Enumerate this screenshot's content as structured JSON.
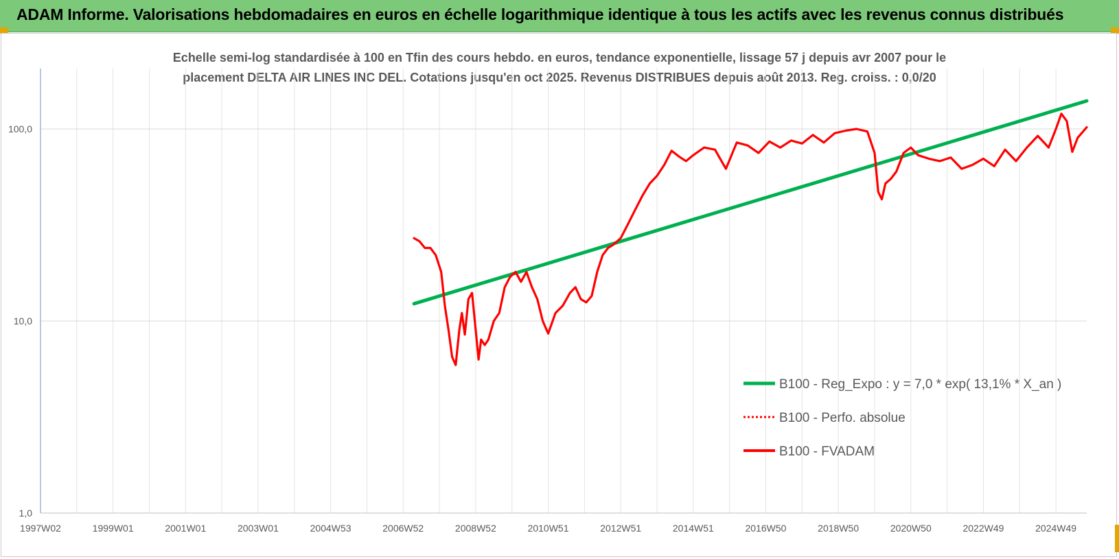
{
  "header": {
    "title": "ADAM Informe. Valorisations hebdomadaires en euros en échelle logarithmique identique à tous les actifs avec les revenus connus distribués"
  },
  "chart_data": {
    "type": "line",
    "title_line1": "Echelle semi-log standardisée à 100 en Tfin des cours hebdo. en euros, tendance exponentielle, lissage 57 j depuis avr 2007 pour le",
    "title_line2": "placement DELTA AIR LINES INC DEL. Cotations jusqu'en oct 2025. Revenus DISTRIBUES depuis août 2013. Reg. croiss. : 0,0/20",
    "y_scale": "log",
    "ylim": [
      1,
      180
    ],
    "xlim": [
      1997.0,
      2025.85
    ],
    "grid": true,
    "legend_position": "bottom-right",
    "y_ticks": [
      {
        "value": 1,
        "label": "1,0"
      },
      {
        "value": 10,
        "label": "10,0"
      },
      {
        "value": 100,
        "label": "100,0"
      }
    ],
    "x_ticks": [
      {
        "value": 1997.0,
        "label": "1997W02"
      },
      {
        "value": 1999.0,
        "label": "1999W01"
      },
      {
        "value": 2001.0,
        "label": "2001W01"
      },
      {
        "value": 2003.0,
        "label": "2003W01"
      },
      {
        "value": 2005.0,
        "label": "2004W53"
      },
      {
        "value": 2007.0,
        "label": "2006W52"
      },
      {
        "value": 2009.0,
        "label": "2008W52"
      },
      {
        "value": 2011.0,
        "label": "2010W51"
      },
      {
        "value": 2013.0,
        "label": "2012W51"
      },
      {
        "value": 2015.0,
        "label": "2014W51"
      },
      {
        "value": 2017.0,
        "label": "2016W50"
      },
      {
        "value": 2019.0,
        "label": "2018W50"
      },
      {
        "value": 2021.0,
        "label": "2020W50"
      },
      {
        "value": 2023.0,
        "label": "2022W49"
      },
      {
        "value": 2025.0,
        "label": "2024W49"
      }
    ],
    "series": [
      {
        "name": "B100 - Reg_Expo : y = 7,0 * exp( 13,1% *  X_an )",
        "color": "#00b050",
        "style": "solid",
        "x": [
          2007.3,
          2025.85
        ],
        "y": [
          12.3,
          140
        ]
      },
      {
        "name": "B100 - Perfo. absolue",
        "color": "#ff0000",
        "style": "dotted",
        "x": [],
        "y": []
      },
      {
        "name": "B100 - FVADAM",
        "color": "#ff0000",
        "style": "solid",
        "x": [
          2007.3,
          2007.45,
          2007.6,
          2007.75,
          2007.9,
          2008.05,
          2008.15,
          2008.25,
          2008.35,
          2008.45,
          2008.55,
          2008.62,
          2008.7,
          2008.8,
          2008.9,
          2009.0,
          2009.08,
          2009.15,
          2009.25,
          2009.35,
          2009.5,
          2009.65,
          2009.8,
          2009.95,
          2010.1,
          2010.25,
          2010.4,
          2010.55,
          2010.7,
          2010.85,
          2011.0,
          2011.2,
          2011.4,
          2011.6,
          2011.75,
          2011.9,
          2012.05,
          2012.2,
          2012.35,
          2012.5,
          2012.65,
          2012.8,
          2013.0,
          2013.2,
          2013.4,
          2013.6,
          2013.8,
          2014.0,
          2014.2,
          2014.4,
          2014.6,
          2014.8,
          2015.0,
          2015.3,
          2015.6,
          2015.9,
          2016.2,
          2016.5,
          2016.8,
          2017.1,
          2017.4,
          2017.7,
          2018.0,
          2018.3,
          2018.6,
          2018.9,
          2019.2,
          2019.5,
          2019.8,
          2020.0,
          2020.1,
          2020.2,
          2020.3,
          2020.45,
          2020.6,
          2020.8,
          2021.0,
          2021.2,
          2021.5,
          2021.8,
          2022.1,
          2022.4,
          2022.7,
          2023.0,
          2023.3,
          2023.6,
          2023.9,
          2024.2,
          2024.5,
          2024.8,
          2025.0,
          2025.15,
          2025.3,
          2025.45,
          2025.6,
          2025.85
        ],
        "y": [
          27,
          26,
          24,
          24,
          22,
          18,
          12,
          9,
          6.5,
          5.9,
          9,
          11,
          8.5,
          13,
          14,
          9,
          6.3,
          8,
          7.5,
          8,
          10,
          11,
          15,
          17,
          18,
          16,
          18,
          15,
          13,
          10,
          8.6,
          11,
          12,
          14,
          15,
          13,
          12.5,
          13.5,
          18,
          22,
          24,
          25,
          27,
          32,
          38,
          45,
          52,
          57,
          65,
          77,
          72,
          68,
          73,
          80,
          78,
          62,
          85,
          82,
          75,
          86,
          80,
          87,
          84,
          93,
          85,
          95,
          98,
          100,
          97,
          75,
          47,
          43,
          52,
          55,
          60,
          75,
          80,
          73,
          70,
          68,
          71,
          62,
          65,
          70,
          64,
          78,
          68,
          80,
          92,
          80,
          100,
          120,
          110,
          76,
          90,
          102
        ]
      }
    ]
  }
}
